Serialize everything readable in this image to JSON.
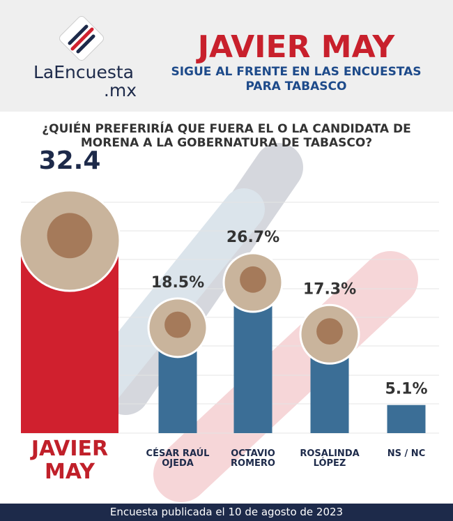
{
  "header": {
    "logo_text": "LaEncuesta",
    "logo_suffix": ".mx",
    "title": "JAVIER MAY",
    "subtitle": [
      "SIGUE AL FRENTE EN LAS ENCUESTAS",
      "PARA TABASCO"
    ]
  },
  "chart_data": {
    "type": "bar",
    "title": [
      "¿QUIÉN PREFERIRÍA QUE FUERA EL O LA CANDIDATA DE",
      "MORENA A LA GOBERNATURA DE TABASCO?"
    ],
    "categories": [
      "JAVIER MAY",
      "CÉSAR RAÚL OJEDA",
      "OCTAVIO ROMERO",
      "ROSALINDA LÓPEZ",
      "NS / NC"
    ],
    "values": [
      32.4,
      18.5,
      26.7,
      17.3,
      5.1
    ],
    "value_labels": [
      "32.4",
      "18.5%",
      "26.7%",
      "17.3%",
      "5.1%"
    ],
    "colors": [
      "#d0202e",
      "#3b6e96",
      "#3b6e96",
      "#3b6e96",
      "#3b6e96"
    ]
  },
  "footer": "Encuesta publicada el 10 de agosto de 2023"
}
